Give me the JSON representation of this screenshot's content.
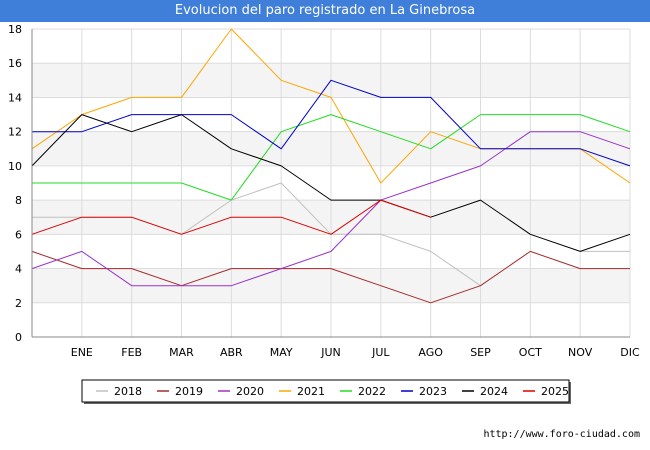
{
  "page": {
    "source_text": "http://www.foro-ciudad.com"
  },
  "chart_data": {
    "type": "line",
    "title": "Evolucion del paro registrado en La Ginebrosa",
    "xlabel": "",
    "ylabel": "",
    "categories": [
      "",
      "ENE",
      "FEB",
      "MAR",
      "ABR",
      "MAY",
      "JUN",
      "JUL",
      "AGO",
      "SEP",
      "OCT",
      "NOV",
      "DIC"
    ],
    "ylim": [
      0,
      18
    ],
    "yticks": [
      0,
      2,
      4,
      6,
      8,
      10,
      12,
      14,
      16,
      18
    ],
    "grid": true,
    "legend_position": "bottom",
    "series": [
      {
        "name": "2018",
        "color": "#c0c0c0",
        "values": [
          7,
          7,
          7,
          6,
          8,
          9,
          6,
          6,
          5,
          3,
          null,
          5,
          5
        ]
      },
      {
        "name": "2019",
        "color": "#a52a2a",
        "values": [
          5,
          4,
          4,
          3,
          4,
          4,
          4,
          3,
          2,
          3,
          5,
          4,
          4
        ]
      },
      {
        "name": "2020",
        "color": "#9932cc",
        "values": [
          4,
          5,
          3,
          3,
          3,
          4,
          5,
          8,
          9,
          10,
          12,
          12,
          11
        ]
      },
      {
        "name": "2021",
        "color": "#ffa500",
        "values": [
          11,
          13,
          14,
          14,
          18,
          15,
          14,
          9,
          12,
          11,
          11,
          11,
          9
        ]
      },
      {
        "name": "2022",
        "color": "#22dd22",
        "values": [
          9,
          9,
          9,
          9,
          8,
          12,
          13,
          12,
          11,
          13,
          13,
          13,
          12
        ]
      },
      {
        "name": "2023",
        "color": "#0000cc",
        "values": [
          12,
          12,
          13,
          13,
          13,
          11,
          15,
          14,
          14,
          11,
          11,
          11,
          10
        ]
      },
      {
        "name": "2024",
        "color": "#000000",
        "values": [
          10,
          13,
          12,
          13,
          11,
          10,
          8,
          8,
          7,
          8,
          6,
          5,
          6
        ]
      },
      {
        "name": "2025",
        "color": "#dd0000",
        "values": [
          6,
          7,
          7,
          6,
          7,
          7,
          6,
          8,
          7,
          null,
          null,
          null,
          null
        ]
      }
    ]
  }
}
